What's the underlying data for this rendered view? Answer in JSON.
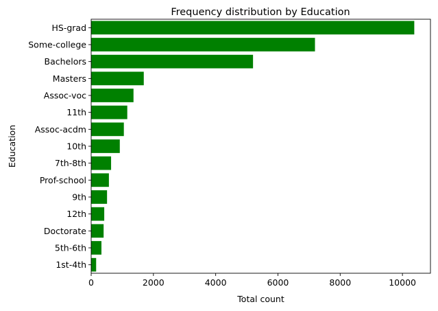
{
  "chart_data": {
    "type": "bar",
    "orientation": "horizontal",
    "title": "Frequency distribution by Education",
    "xlabel": "Total count",
    "ylabel": "Education",
    "categories": [
      "HS-grad",
      "Some-college",
      "Bachelors",
      "Masters",
      "Assoc-voc",
      "11th",
      "Assoc-acdm",
      "10th",
      "7th-8th",
      "Prof-school",
      "9th",
      "12th",
      "Doctorate",
      "5th-6th",
      "1st-4th"
    ],
    "values": [
      10380,
      7190,
      5200,
      1690,
      1360,
      1160,
      1050,
      920,
      640,
      570,
      510,
      420,
      400,
      330,
      160
    ],
    "xlim": [
      0,
      10900
    ],
    "xticks": [
      0,
      2000,
      4000,
      6000,
      8000,
      10000
    ],
    "grid": false,
    "bar_color": "#008000"
  }
}
